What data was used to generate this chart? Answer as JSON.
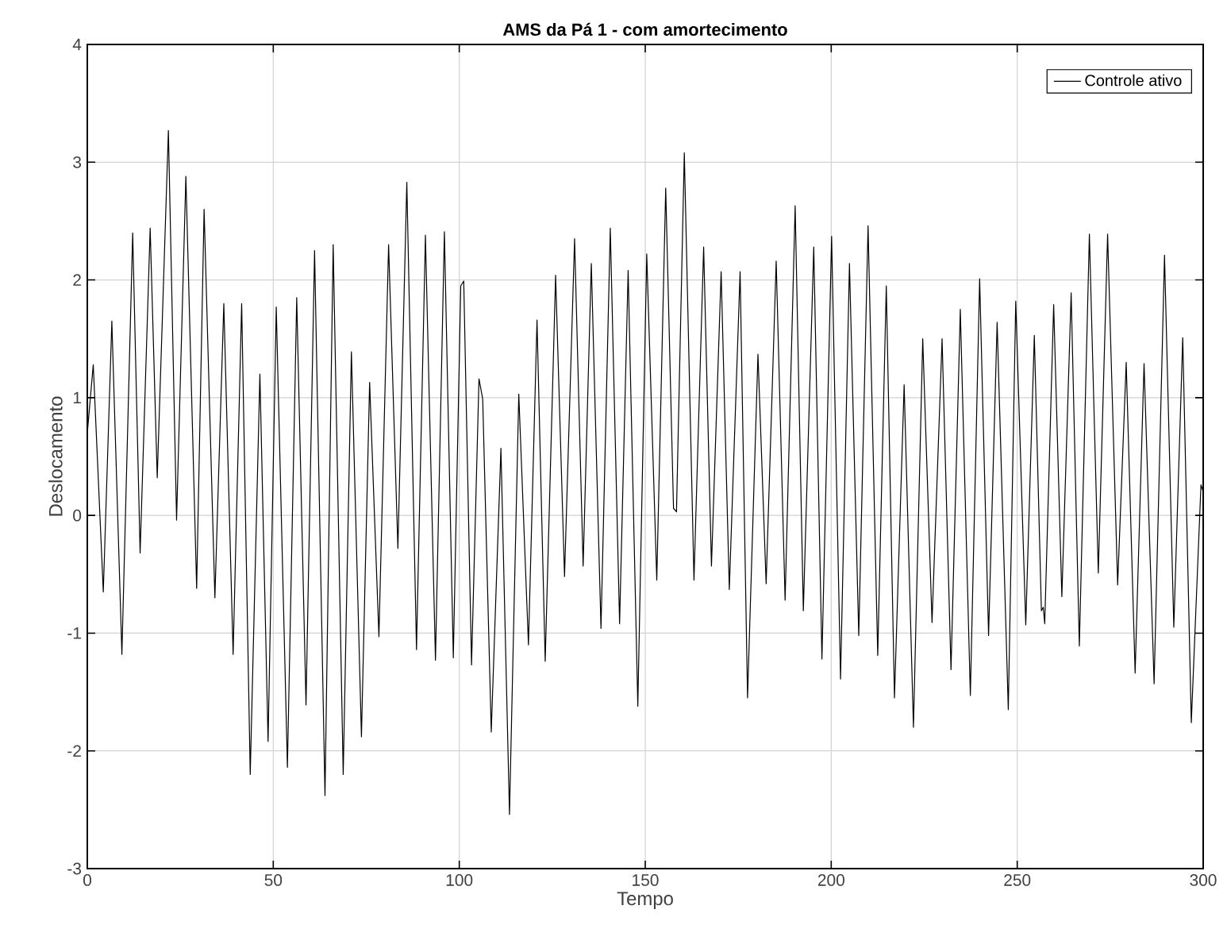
{
  "chart_data": {
    "type": "line",
    "title": "AMS da Pá 1 - com amortecimento",
    "xlabel": "Tempo",
    "ylabel": "Deslocamento",
    "xlim": [
      0,
      300
    ],
    "ylim": [
      -3,
      4
    ],
    "xticks": [
      0,
      50,
      100,
      150,
      200,
      250,
      300
    ],
    "yticks": [
      -3,
      -2,
      -1,
      0,
      1,
      2,
      3,
      4
    ],
    "grid": true,
    "legend": "top right",
    "line_style": "solid",
    "marker": "none",
    "series": [
      {
        "name": "Controle ativo",
        "color": "#000000",
        "x": [
          0,
          1.6,
          4.3,
          6.6,
          9.3,
          12.2,
          14.2,
          16.9,
          18.8,
          21.8,
          24.0,
          26.5,
          29.4,
          31.4,
          34.3,
          36.7,
          39.2,
          41.5,
          43.8,
          46.4,
          48.6,
          50.8,
          53.8,
          56.3,
          58.8,
          61.1,
          63.9,
          66.1,
          68.8,
          71.0,
          73.7,
          75.9,
          78.4,
          81.0,
          83.5,
          85.9,
          88.5,
          90.9,
          93.6,
          96.0,
          98.4,
          100.4,
          101.2,
          103.3,
          105.3,
          106.3,
          108.6,
          111.2,
          113.5,
          116.0,
          118.6,
          120.9,
          123.1,
          125.9,
          128.3,
          131.0,
          133.3,
          135.5,
          138.1,
          140.6,
          143.1,
          145.4,
          148.0,
          150.4,
          153.1,
          155.5,
          157.6,
          158.4,
          160.5,
          163.1,
          165.7,
          167.8,
          170.4,
          172.6,
          175.5,
          177.5,
          180.3,
          182.5,
          185.2,
          187.6,
          190.3,
          192.5,
          195.3,
          197.5,
          200.1,
          202.5,
          204.9,
          207.4,
          209.9,
          212.5,
          214.8,
          217.0,
          219.6,
          222.1,
          224.6,
          227.1,
          229.8,
          232.2,
          234.7,
          237.4,
          239.9,
          242.3,
          244.6,
          247.6,
          249.6,
          252.3,
          254.6,
          256.5,
          257.0,
          257.4,
          259.8,
          262.0,
          264.5,
          266.7,
          269.4,
          271.8,
          274.3,
          277.0,
          279.3,
          281.7,
          284.1,
          286.8,
          289.6,
          292.1,
          294.5,
          296.8,
          299.4,
          300
        ],
        "values": [
          0.7,
          1.28,
          -0.65,
          1.65,
          -1.18,
          2.4,
          -0.32,
          2.44,
          0.32,
          3.27,
          -0.04,
          2.88,
          -0.62,
          2.6,
          -0.7,
          1.8,
          -1.18,
          1.8,
          -2.2,
          1.2,
          -1.92,
          1.77,
          -2.14,
          1.85,
          -1.61,
          2.25,
          -2.38,
          2.3,
          -2.2,
          1.39,
          -1.88,
          1.13,
          -1.03,
          2.3,
          -0.28,
          2.83,
          -1.14,
          2.38,
          -1.23,
          2.41,
          -1.21,
          1.95,
          1.99,
          -1.27,
          1.16,
          0.99,
          -1.84,
          0.57,
          -2.54,
          1.03,
          -1.1,
          1.66,
          -1.24,
          2.04,
          -0.52,
          2.35,
          -0.43,
          2.14,
          -0.96,
          2.44,
          -0.92,
          2.08,
          -1.62,
          2.22,
          -0.55,
          2.78,
          0.06,
          0.03,
          3.08,
          -0.55,
          2.28,
          -0.43,
          2.07,
          -0.63,
          2.07,
          -1.55,
          1.37,
          -0.58,
          2.16,
          -0.72,
          2.63,
          -0.81,
          2.28,
          -1.22,
          2.37,
          -1.39,
          2.14,
          -1.02,
          2.46,
          -1.19,
          1.95,
          -1.55,
          1.11,
          -1.8,
          1.5,
          -0.91,
          1.5,
          -1.31,
          1.75,
          -1.53,
          2.01,
          -1.02,
          1.64,
          -1.65,
          1.82,
          -0.93,
          1.53,
          -0.81,
          -0.78,
          -0.92,
          1.79,
          -0.69,
          1.89,
          -1.11,
          2.39,
          -0.49,
          2.39,
          -0.59,
          1.3,
          -1.34,
          1.29,
          -1.43,
          2.21,
          -0.95,
          1.51,
          -1.76,
          0.26,
          0.2
        ]
      }
    ]
  }
}
